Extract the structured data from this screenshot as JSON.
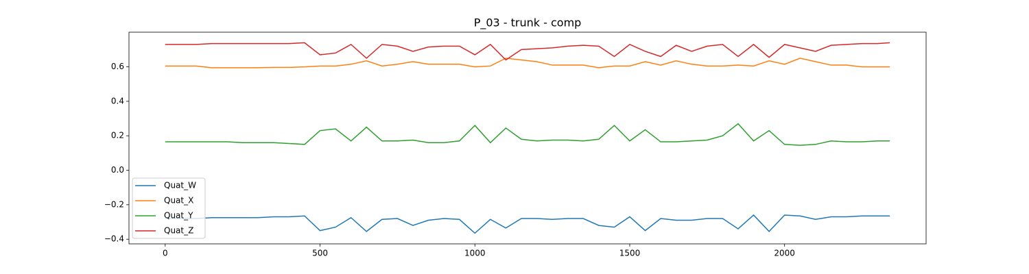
{
  "chart_data": {
    "type": "line",
    "title": "P_03 - trunk - comp",
    "x": [
      0,
      50,
      100,
      150,
      200,
      250,
      300,
      350,
      400,
      450,
      500,
      550,
      600,
      650,
      700,
      750,
      800,
      850,
      900,
      950,
      1000,
      1050,
      1100,
      1150,
      1200,
      1250,
      1300,
      1350,
      1400,
      1450,
      1500,
      1550,
      1600,
      1650,
      1700,
      1750,
      1800,
      1850,
      1900,
      1950,
      2000,
      2050,
      2100,
      2150,
      2200,
      2250,
      2300,
      2340
    ],
    "series": [
      {
        "name": "Quat_W",
        "color": "#1f77b4",
        "values": [
          -0.28,
          -0.28,
          -0.28,
          -0.275,
          -0.275,
          -0.275,
          -0.275,
          -0.27,
          -0.27,
          -0.265,
          -0.35,
          -0.33,
          -0.275,
          -0.355,
          -0.285,
          -0.28,
          -0.32,
          -0.29,
          -0.28,
          -0.285,
          -0.365,
          -0.285,
          -0.335,
          -0.28,
          -0.28,
          -0.285,
          -0.28,
          -0.28,
          -0.32,
          -0.33,
          -0.27,
          -0.35,
          -0.28,
          -0.29,
          -0.29,
          -0.28,
          -0.28,
          -0.34,
          -0.26,
          -0.355,
          -0.26,
          -0.265,
          -0.285,
          -0.27,
          -0.27,
          -0.265,
          -0.265,
          -0.265
        ]
      },
      {
        "name": "Quat_X",
        "color": "#ff7f0e",
        "values": [
          0.605,
          0.605,
          0.605,
          0.595,
          0.595,
          0.595,
          0.595,
          0.597,
          0.597,
          0.6,
          0.605,
          0.605,
          0.615,
          0.635,
          0.605,
          0.615,
          0.63,
          0.615,
          0.615,
          0.615,
          0.6,
          0.605,
          0.65,
          0.64,
          0.63,
          0.61,
          0.61,
          0.61,
          0.595,
          0.605,
          0.605,
          0.63,
          0.61,
          0.635,
          0.615,
          0.605,
          0.605,
          0.61,
          0.605,
          0.635,
          0.615,
          0.65,
          0.63,
          0.61,
          0.61,
          0.6,
          0.6,
          0.6
        ]
      },
      {
        "name": "Quat_Y",
        "color": "#2ca02c",
        "values": [
          0.165,
          0.165,
          0.165,
          0.165,
          0.165,
          0.16,
          0.16,
          0.16,
          0.155,
          0.15,
          0.23,
          0.24,
          0.17,
          0.25,
          0.17,
          0.17,
          0.175,
          0.16,
          0.16,
          0.17,
          0.26,
          0.16,
          0.245,
          0.18,
          0.17,
          0.175,
          0.175,
          0.17,
          0.18,
          0.26,
          0.17,
          0.235,
          0.165,
          0.165,
          0.17,
          0.175,
          0.2,
          0.27,
          0.17,
          0.23,
          0.15,
          0.145,
          0.15,
          0.17,
          0.165,
          0.165,
          0.17,
          0.17
        ]
      },
      {
        "name": "Quat_Z",
        "color": "#d62728",
        "values": [
          0.73,
          0.73,
          0.73,
          0.735,
          0.735,
          0.735,
          0.735,
          0.735,
          0.735,
          0.74,
          0.67,
          0.68,
          0.73,
          0.65,
          0.73,
          0.72,
          0.69,
          0.715,
          0.72,
          0.72,
          0.67,
          0.73,
          0.64,
          0.7,
          0.705,
          0.71,
          0.72,
          0.725,
          0.72,
          0.66,
          0.73,
          0.69,
          0.66,
          0.725,
          0.69,
          0.72,
          0.73,
          0.66,
          0.73,
          0.655,
          0.73,
          0.71,
          0.69,
          0.725,
          0.73,
          0.735,
          0.735,
          0.74
        ]
      }
    ],
    "xlim": [
      -117,
      2457
    ],
    "ylim": [
      -0.427,
      0.801
    ],
    "xticks": [
      0,
      500,
      1000,
      1500,
      2000
    ],
    "yticks": [
      {
        "value": -0.4,
        "label": "−0.4"
      },
      {
        "value": -0.2,
        "label": "−0.2"
      },
      {
        "value": 0,
        "label": "0.0"
      },
      0.2,
      0.4,
      0.6
    ],
    "legend": "lower left"
  }
}
